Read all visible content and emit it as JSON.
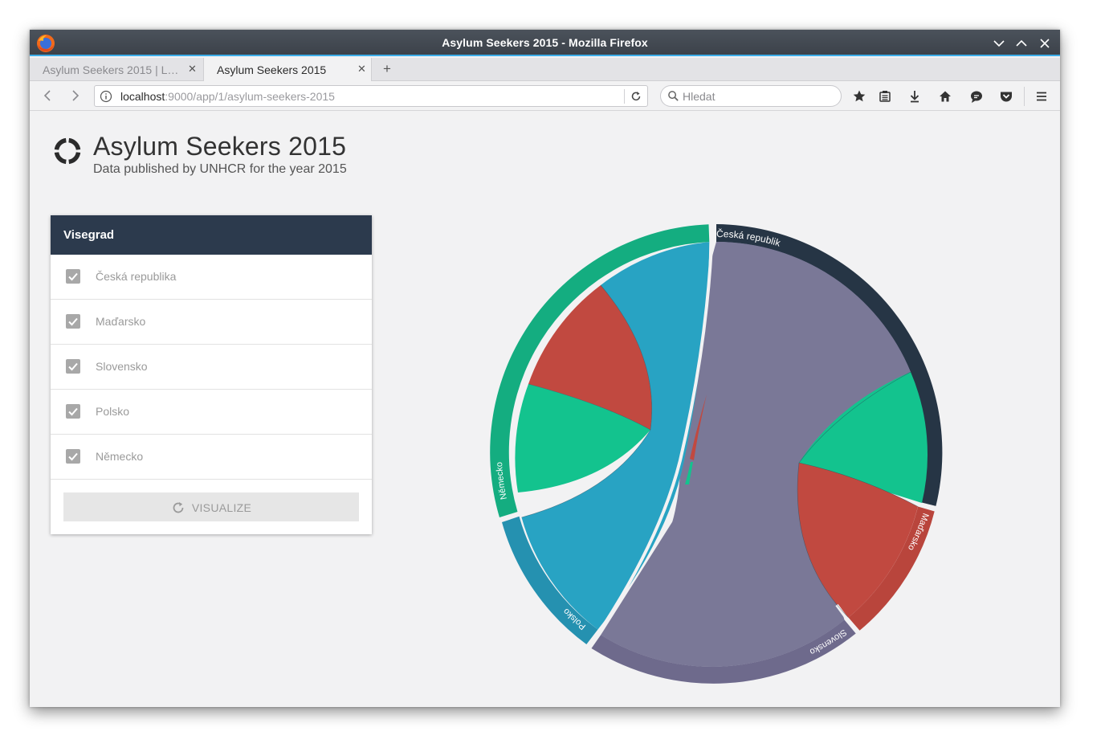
{
  "window": {
    "title": "Asylum Seekers 2015 - Mozilla Firefox",
    "tabs": [
      {
        "label": "Asylum Seekers 2015 | L…",
        "active": false
      },
      {
        "label": "Asylum Seekers 2015",
        "active": true
      }
    ],
    "url_host": "localhost",
    "url_rest": ":9000/app/1/asylum-seekers-2015",
    "search_placeholder": "Hledat"
  },
  "app": {
    "title": "Asylum Seekers 2015",
    "subtitle": "Data published by UNHCR for the year 2015"
  },
  "panel": {
    "heading": "Visegrad",
    "countries": [
      {
        "label": "Česká republika",
        "checked": true
      },
      {
        "label": "Maďarsko",
        "checked": true
      },
      {
        "label": "Slovensko",
        "checked": true
      },
      {
        "label": "Polsko",
        "checked": true
      },
      {
        "label": "Německo",
        "checked": true
      }
    ],
    "button_label": "VISUALIZE"
  },
  "chord": {
    "groups": [
      {
        "name": "Česká republika",
        "color": "#263545"
      },
      {
        "name": "Maďarsko",
        "color": "#b9453c"
      },
      {
        "name": "Slovensko",
        "color": "#6e6a8c"
      },
      {
        "name": "Polsko",
        "color": "#2591b0"
      },
      {
        "name": "Německo",
        "color": "#14ad80"
      }
    ],
    "ribbon_colors": {
      "purple": "#7a7897",
      "green": "#13c38e",
      "red": "#c14940",
      "blue": "#28a3c3"
    }
  },
  "colors": {
    "accent": "#3daee9",
    "panel_header": "#2c3a4d"
  }
}
